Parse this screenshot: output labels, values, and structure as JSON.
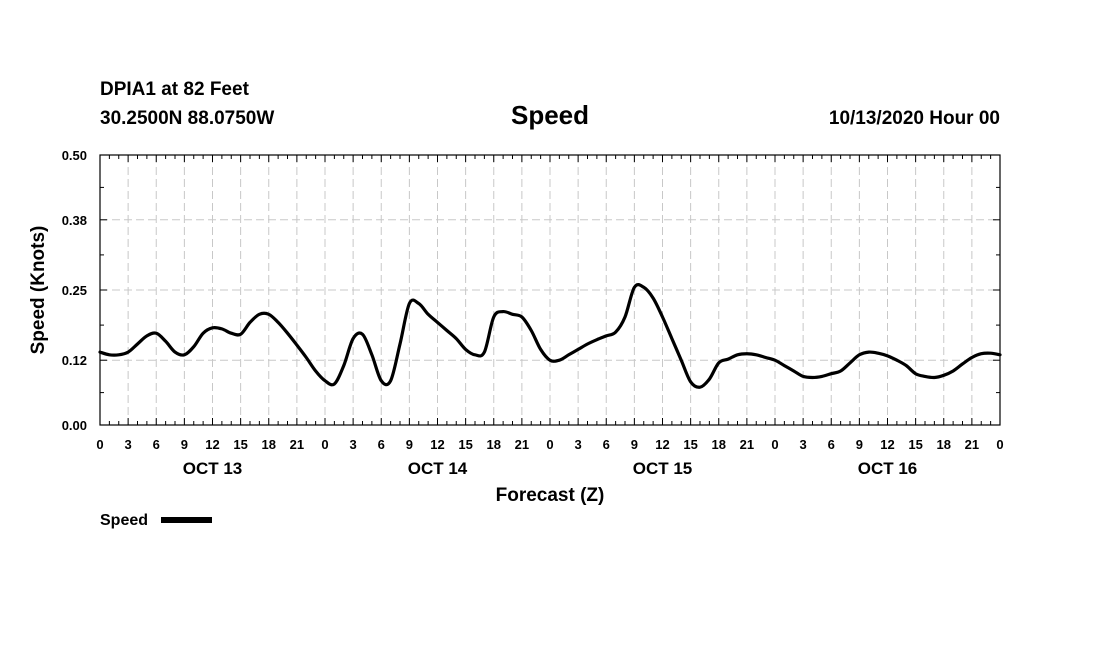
{
  "header": {
    "station": "DPIA1 at 82 Feet",
    "location": "30.2500N 88.0750W",
    "title": "Speed",
    "datetime": "10/13/2020 Hour 00"
  },
  "chart_data": {
    "type": "line",
    "title": "Speed",
    "xlabel": "Forecast (Z)",
    "ylabel": "Speed (Knots)",
    "ylim": [
      0,
      0.5
    ],
    "xlim": [
      0,
      96
    ],
    "y_ticks": [
      0.0,
      0.12,
      0.25,
      0.38,
      0.5
    ],
    "y_tick_labels": [
      "0.00",
      "0.12",
      "0.25",
      "0.38",
      "0.50"
    ],
    "x_tick_hours": [
      0,
      3,
      6,
      9,
      12,
      15,
      18,
      21,
      24,
      27,
      30,
      33,
      36,
      39,
      42,
      45,
      48,
      51,
      54,
      57,
      60,
      63,
      66,
      69,
      72,
      75,
      78,
      81,
      84,
      87,
      90,
      93,
      96
    ],
    "x_tick_labels": [
      "0",
      "3",
      "6",
      "9",
      "12",
      "15",
      "18",
      "21",
      "0",
      "3",
      "6",
      "9",
      "12",
      "15",
      "18",
      "21",
      "0",
      "3",
      "6",
      "9",
      "12",
      "15",
      "18",
      "21",
      "0",
      "3",
      "6",
      "9",
      "12",
      "15",
      "18",
      "21",
      "0"
    ],
    "day_labels": [
      {
        "label": "OCT 13",
        "hour": 12
      },
      {
        "label": "OCT 14",
        "hour": 36
      },
      {
        "label": "OCT 15",
        "hour": 60
      },
      {
        "label": "OCT 16",
        "hour": 84
      }
    ],
    "grid": true,
    "legend": {
      "position": "bottom-left",
      "entries": [
        {
          "name": "Speed",
          "color": "#000000"
        }
      ]
    },
    "series": [
      {
        "name": "Speed",
        "color": "#000000",
        "x": [
          0,
          1,
          2,
          3,
          4,
          5,
          6,
          7,
          8,
          9,
          10,
          11,
          12,
          13,
          14,
          15,
          16,
          17,
          18,
          19,
          20,
          21,
          22,
          23,
          24,
          25,
          26,
          27,
          28,
          29,
          30,
          31,
          32,
          33,
          34,
          35,
          36,
          37,
          38,
          39,
          40,
          41,
          42,
          43,
          44,
          45,
          46,
          47,
          48,
          49,
          50,
          51,
          52,
          53,
          54,
          55,
          56,
          57,
          58,
          59,
          60,
          61,
          62,
          63,
          64,
          65,
          66,
          67,
          68,
          69,
          70,
          71,
          72,
          73,
          74,
          75,
          76,
          77,
          78,
          79,
          80,
          81,
          82,
          83,
          84,
          85,
          86,
          87,
          88,
          89,
          90,
          91,
          92,
          93,
          94,
          95,
          96
        ],
        "values": [
          0.135,
          0.13,
          0.13,
          0.135,
          0.15,
          0.165,
          0.17,
          0.155,
          0.135,
          0.13,
          0.145,
          0.17,
          0.18,
          0.178,
          0.17,
          0.168,
          0.19,
          0.205,
          0.205,
          0.19,
          0.17,
          0.148,
          0.125,
          0.1,
          0.082,
          0.076,
          0.11,
          0.16,
          0.168,
          0.13,
          0.082,
          0.082,
          0.15,
          0.225,
          0.225,
          0.205,
          0.19,
          0.175,
          0.16,
          0.14,
          0.13,
          0.135,
          0.2,
          0.21,
          0.205,
          0.2,
          0.175,
          0.14,
          0.12,
          0.12,
          0.13,
          0.14,
          0.15,
          0.158,
          0.165,
          0.172,
          0.2,
          0.255,
          0.255,
          0.235,
          0.2,
          0.16,
          0.12,
          0.08,
          0.07,
          0.085,
          0.115,
          0.122,
          0.13,
          0.132,
          0.13,
          0.125,
          0.12,
          0.11,
          0.1,
          0.09,
          0.088,
          0.09,
          0.095,
          0.1,
          0.115,
          0.13,
          0.135,
          0.133,
          0.128,
          0.12,
          0.11,
          0.095,
          0.09,
          0.088,
          0.092,
          0.1,
          0.113,
          0.125,
          0.132,
          0.133,
          0.13
        ]
      }
    ]
  }
}
